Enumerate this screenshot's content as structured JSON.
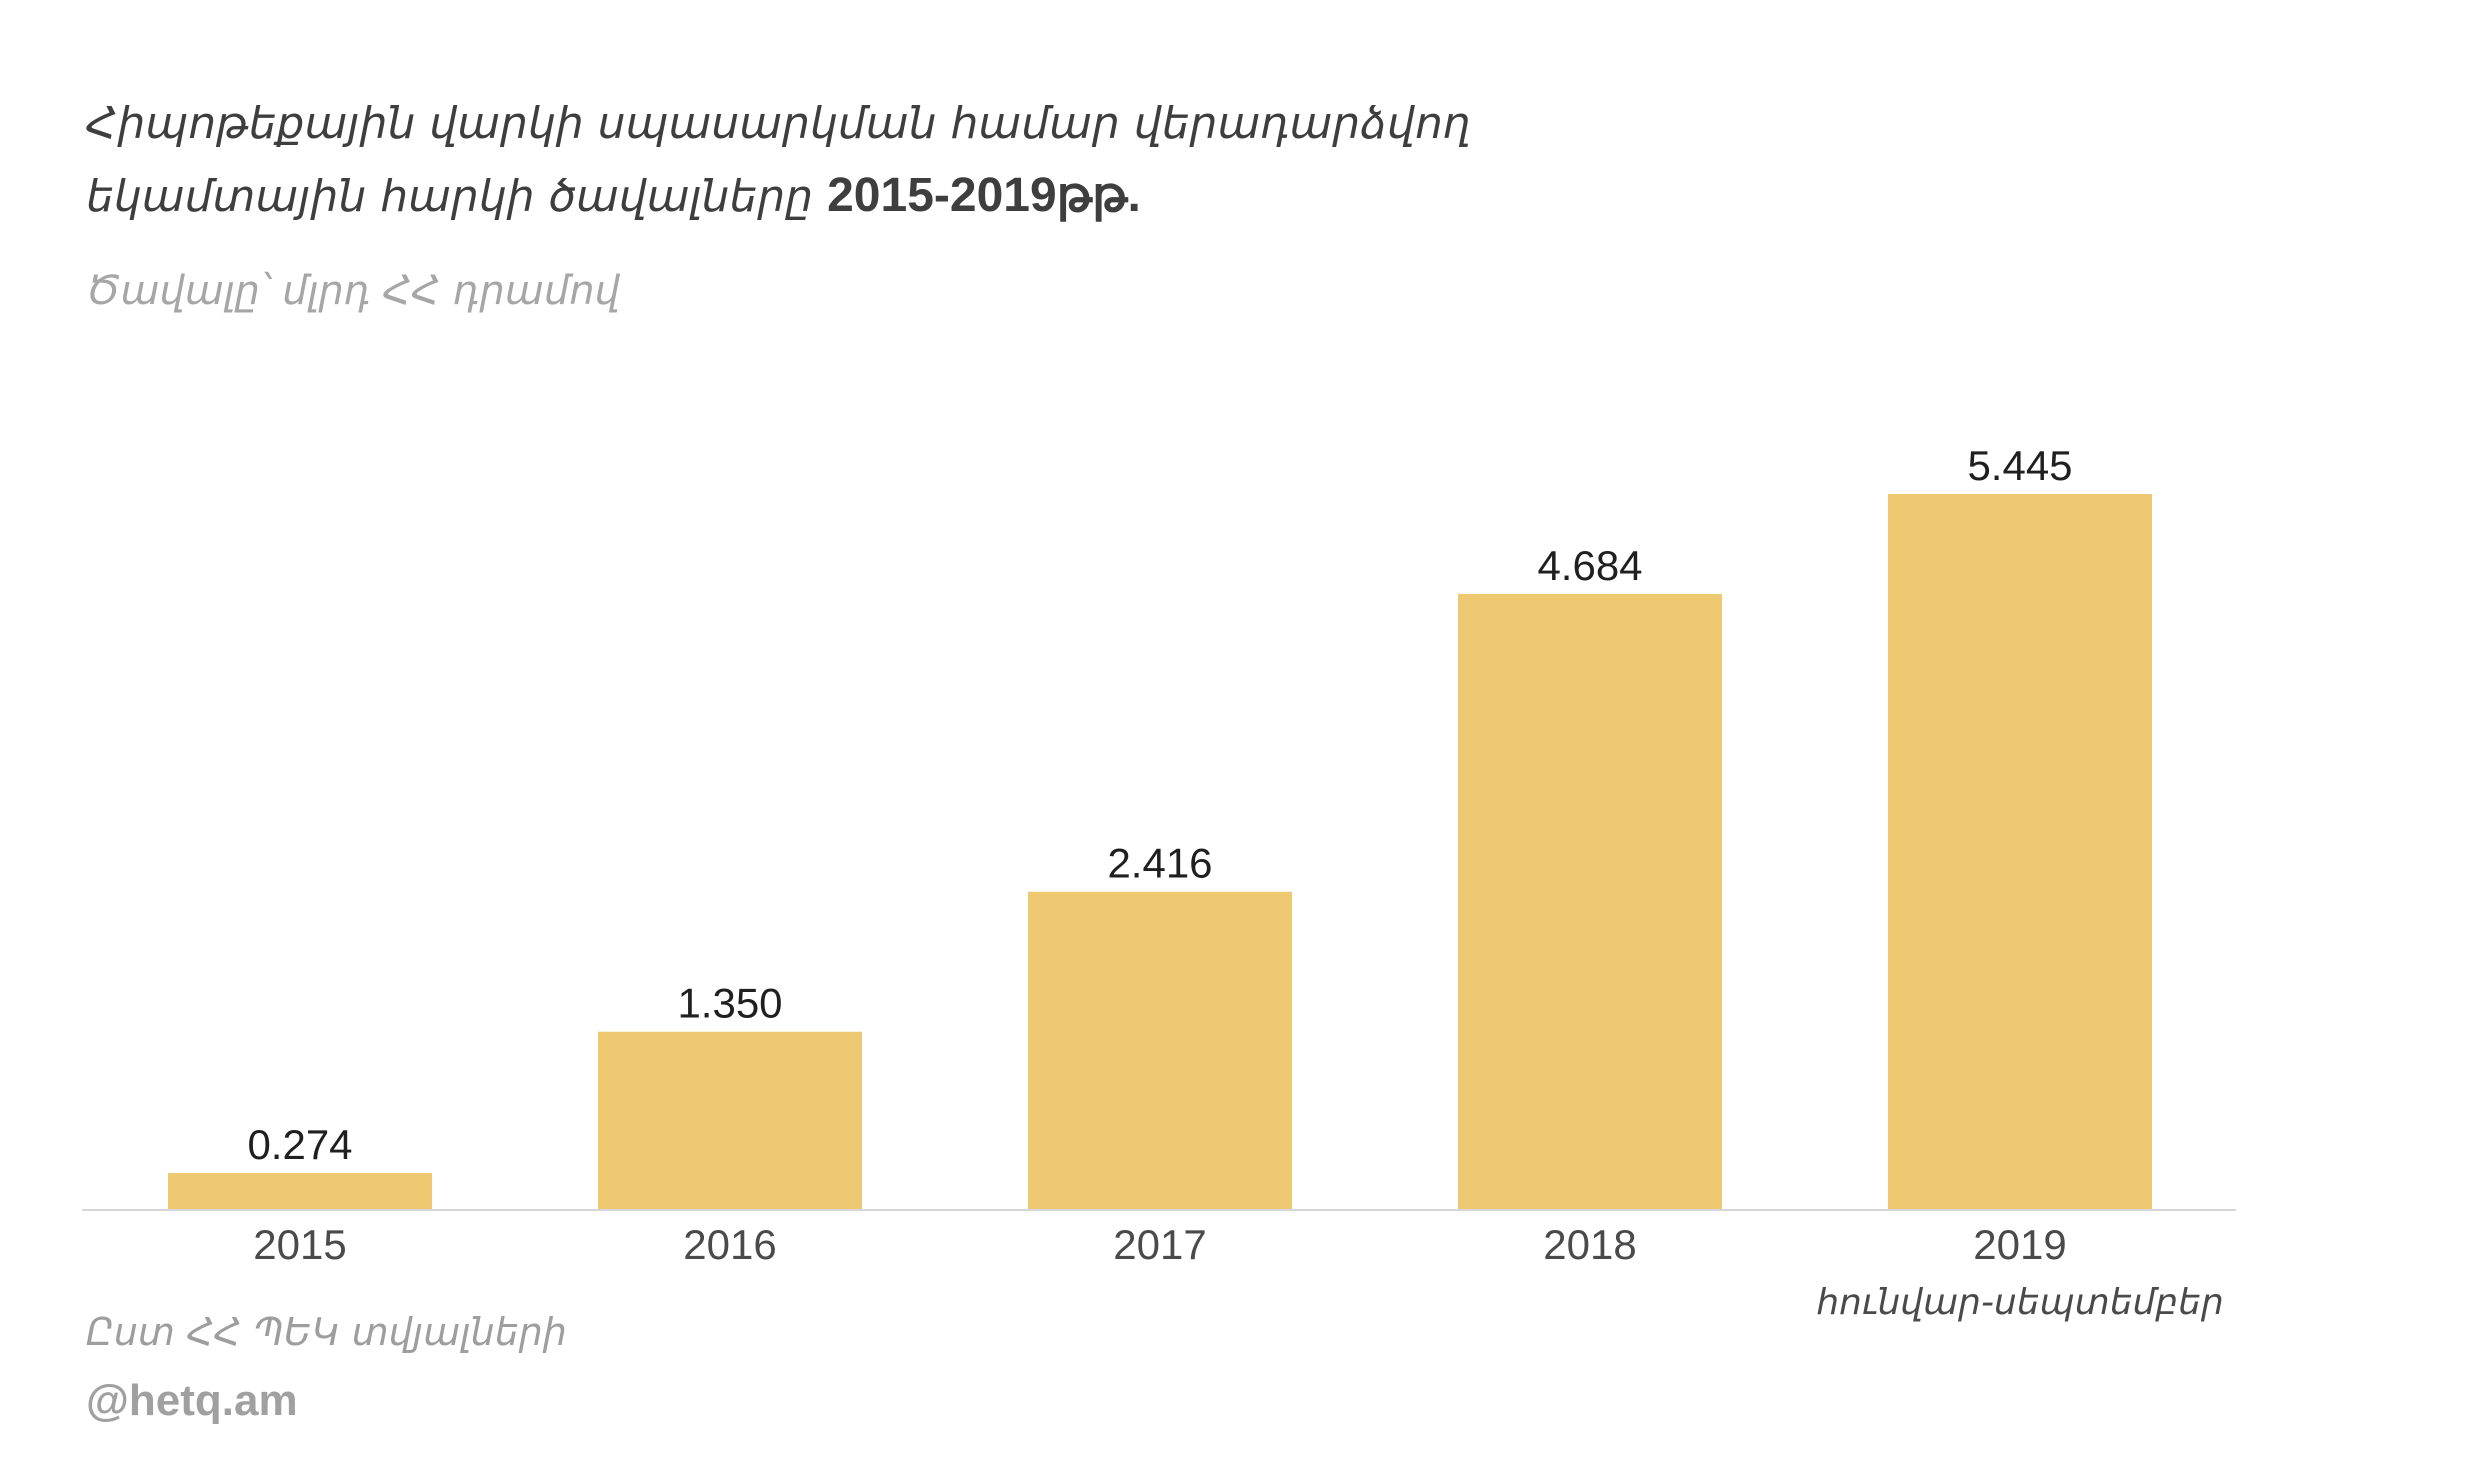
{
  "chart_data": {
    "type": "bar",
    "title_line1": "Հիպոթեքային վարկի սպասարկման համար վերադարձվող",
    "title_line2": "եկամտային հարկի ծավալները",
    "title_years": "2015-2019թթ.",
    "subtitle": "Ծավալը՝ մլրդ ՀՀ դրամով",
    "categories": [
      "2015",
      "2016",
      "2017",
      "2018",
      "2019"
    ],
    "category_notes": [
      "",
      "",
      "",
      "",
      "հունվար-սեպտեմբեր"
    ],
    "values": [
      0.274,
      1.35,
      2.416,
      4.684,
      5.445
    ],
    "value_labels": [
      "0.274",
      "1.350",
      "2.416",
      "4.684",
      "5.445"
    ],
    "ylim": [
      0,
      5.445
    ],
    "grid": false,
    "bar_color": "#eec971"
  },
  "footer": {
    "source": "Ըստ ՀՀ ՊԵԿ տվյալների",
    "credit": "@hetq.am"
  }
}
